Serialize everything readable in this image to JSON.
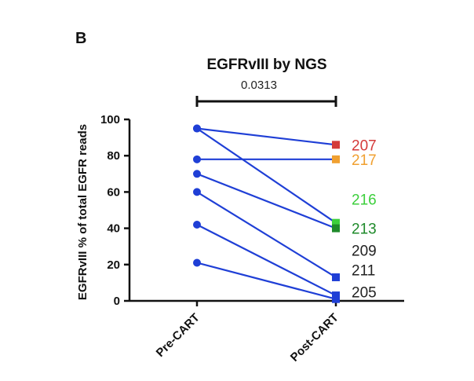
{
  "panel_letter": "B",
  "chart_data": {
    "type": "line",
    "title": "EGFRvIII by NGS",
    "ylabel": "EGFRvIII % of total EGFR reads",
    "xlabel": "",
    "categories": [
      "Pre-CART",
      "Post-CART"
    ],
    "ylim": [
      0,
      100
    ],
    "yticks": [
      0,
      20,
      40,
      60,
      80,
      100
    ],
    "series_color": "#1f3fd6",
    "significance": {
      "p_value": "0.0313",
      "between": [
        "Pre-CART",
        "Post-CART"
      ]
    },
    "series": [
      {
        "pre": 95,
        "post": 86,
        "post_marker_color": "#d43a3a"
      },
      {
        "pre": 78,
        "post": 78,
        "post_marker_color": "#f0a030"
      },
      {
        "pre": 95,
        "post": 43,
        "post_marker_color": "#3ccf3c"
      },
      {
        "pre": 70,
        "post": 40,
        "post_marker_color": "#1e8a2a"
      },
      {
        "pre": 60,
        "post": 13,
        "post_marker_color": "#1f3fd6"
      },
      {
        "pre": 42,
        "post": 3,
        "post_marker_color": "#1f3fd6"
      },
      {
        "pre": 21,
        "post": 1,
        "post_marker_color": "#1f3fd6"
      }
    ],
    "sample_labels": [
      {
        "text": "207",
        "color": "#d43a3a",
        "y": 86
      },
      {
        "text": "217",
        "color": "#f0a030",
        "y": 78
      },
      {
        "text": "216",
        "color": "#3ccf3c",
        "y": 56
      },
      {
        "text": "213",
        "color": "#1e8a2a",
        "y": 40
      },
      {
        "text": "209",
        "color": "#222222",
        "y": 28
      },
      {
        "text": "211",
        "color": "#222222",
        "y": 17
      },
      {
        "text": "205",
        "color": "#222222",
        "y": 5
      }
    ]
  }
}
